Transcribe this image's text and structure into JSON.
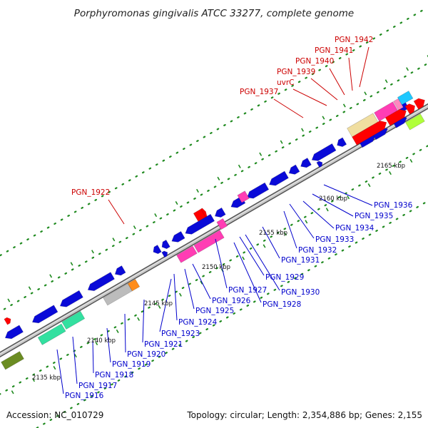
{
  "title": "Porphyromonas gingivalis ATCC 33277, complete genome",
  "footer": {
    "accession": "Accession: NC_010729",
    "summary": "Topology: circular; Length: 2,354,886 bp; Genes: 2,155"
  },
  "colors": {
    "label_forward": "#cc0000",
    "label_reverse": "#0000cc",
    "backbone": "#8c8c8c",
    "tick": "#1a7a1a"
  },
  "scale_ticks": [
    "2135 kbp",
    "2140 kbp",
    "2145 kbp",
    "2150 kbp",
    "2155 kbp",
    "2160 kbp",
    "2165 kbp"
  ],
  "gene_labels": [
    {
      "name": "PGN_1942",
      "strand": "forward"
    },
    {
      "name": "PGN_1941",
      "strand": "forward"
    },
    {
      "name": "PGN_1940",
      "strand": "forward"
    },
    {
      "name": "PGN_1939",
      "strand": "forward"
    },
    {
      "name": "uvrC",
      "strand": "forward"
    },
    {
      "name": "PGN_1937",
      "strand": "forward"
    },
    {
      "name": "PGN_1922",
      "strand": "forward"
    },
    {
      "name": "PGN_1936",
      "strand": "reverse"
    },
    {
      "name": "PGN_1935",
      "strand": "reverse"
    },
    {
      "name": "PGN_1934",
      "strand": "reverse"
    },
    {
      "name": "PGN_1933",
      "strand": "reverse"
    },
    {
      "name": "PGN_1932",
      "strand": "reverse"
    },
    {
      "name": "PGN_1931",
      "strand": "reverse"
    },
    {
      "name": "PGN_1930",
      "strand": "reverse"
    },
    {
      "name": "PGN_1929",
      "strand": "reverse"
    },
    {
      "name": "PGN_1928",
      "strand": "reverse"
    },
    {
      "name": "PGN_1927",
      "strand": "reverse"
    },
    {
      "name": "PGN_1926",
      "strand": "reverse"
    },
    {
      "name": "PGN_1925",
      "strand": "reverse"
    },
    {
      "name": "PGN_1924",
      "strand": "reverse"
    },
    {
      "name": "PGN_1923",
      "strand": "reverse"
    },
    {
      "name": "PGN_1921",
      "strand": "reverse"
    },
    {
      "name": "PGN_1920",
      "strand": "reverse"
    },
    {
      "name": "PGN_1919",
      "strand": "reverse"
    },
    {
      "name": "PGN_1918",
      "strand": "reverse"
    },
    {
      "name": "PGN_1917",
      "strand": "reverse"
    },
    {
      "name": "PGN_1916",
      "strand": "reverse"
    }
  ]
}
